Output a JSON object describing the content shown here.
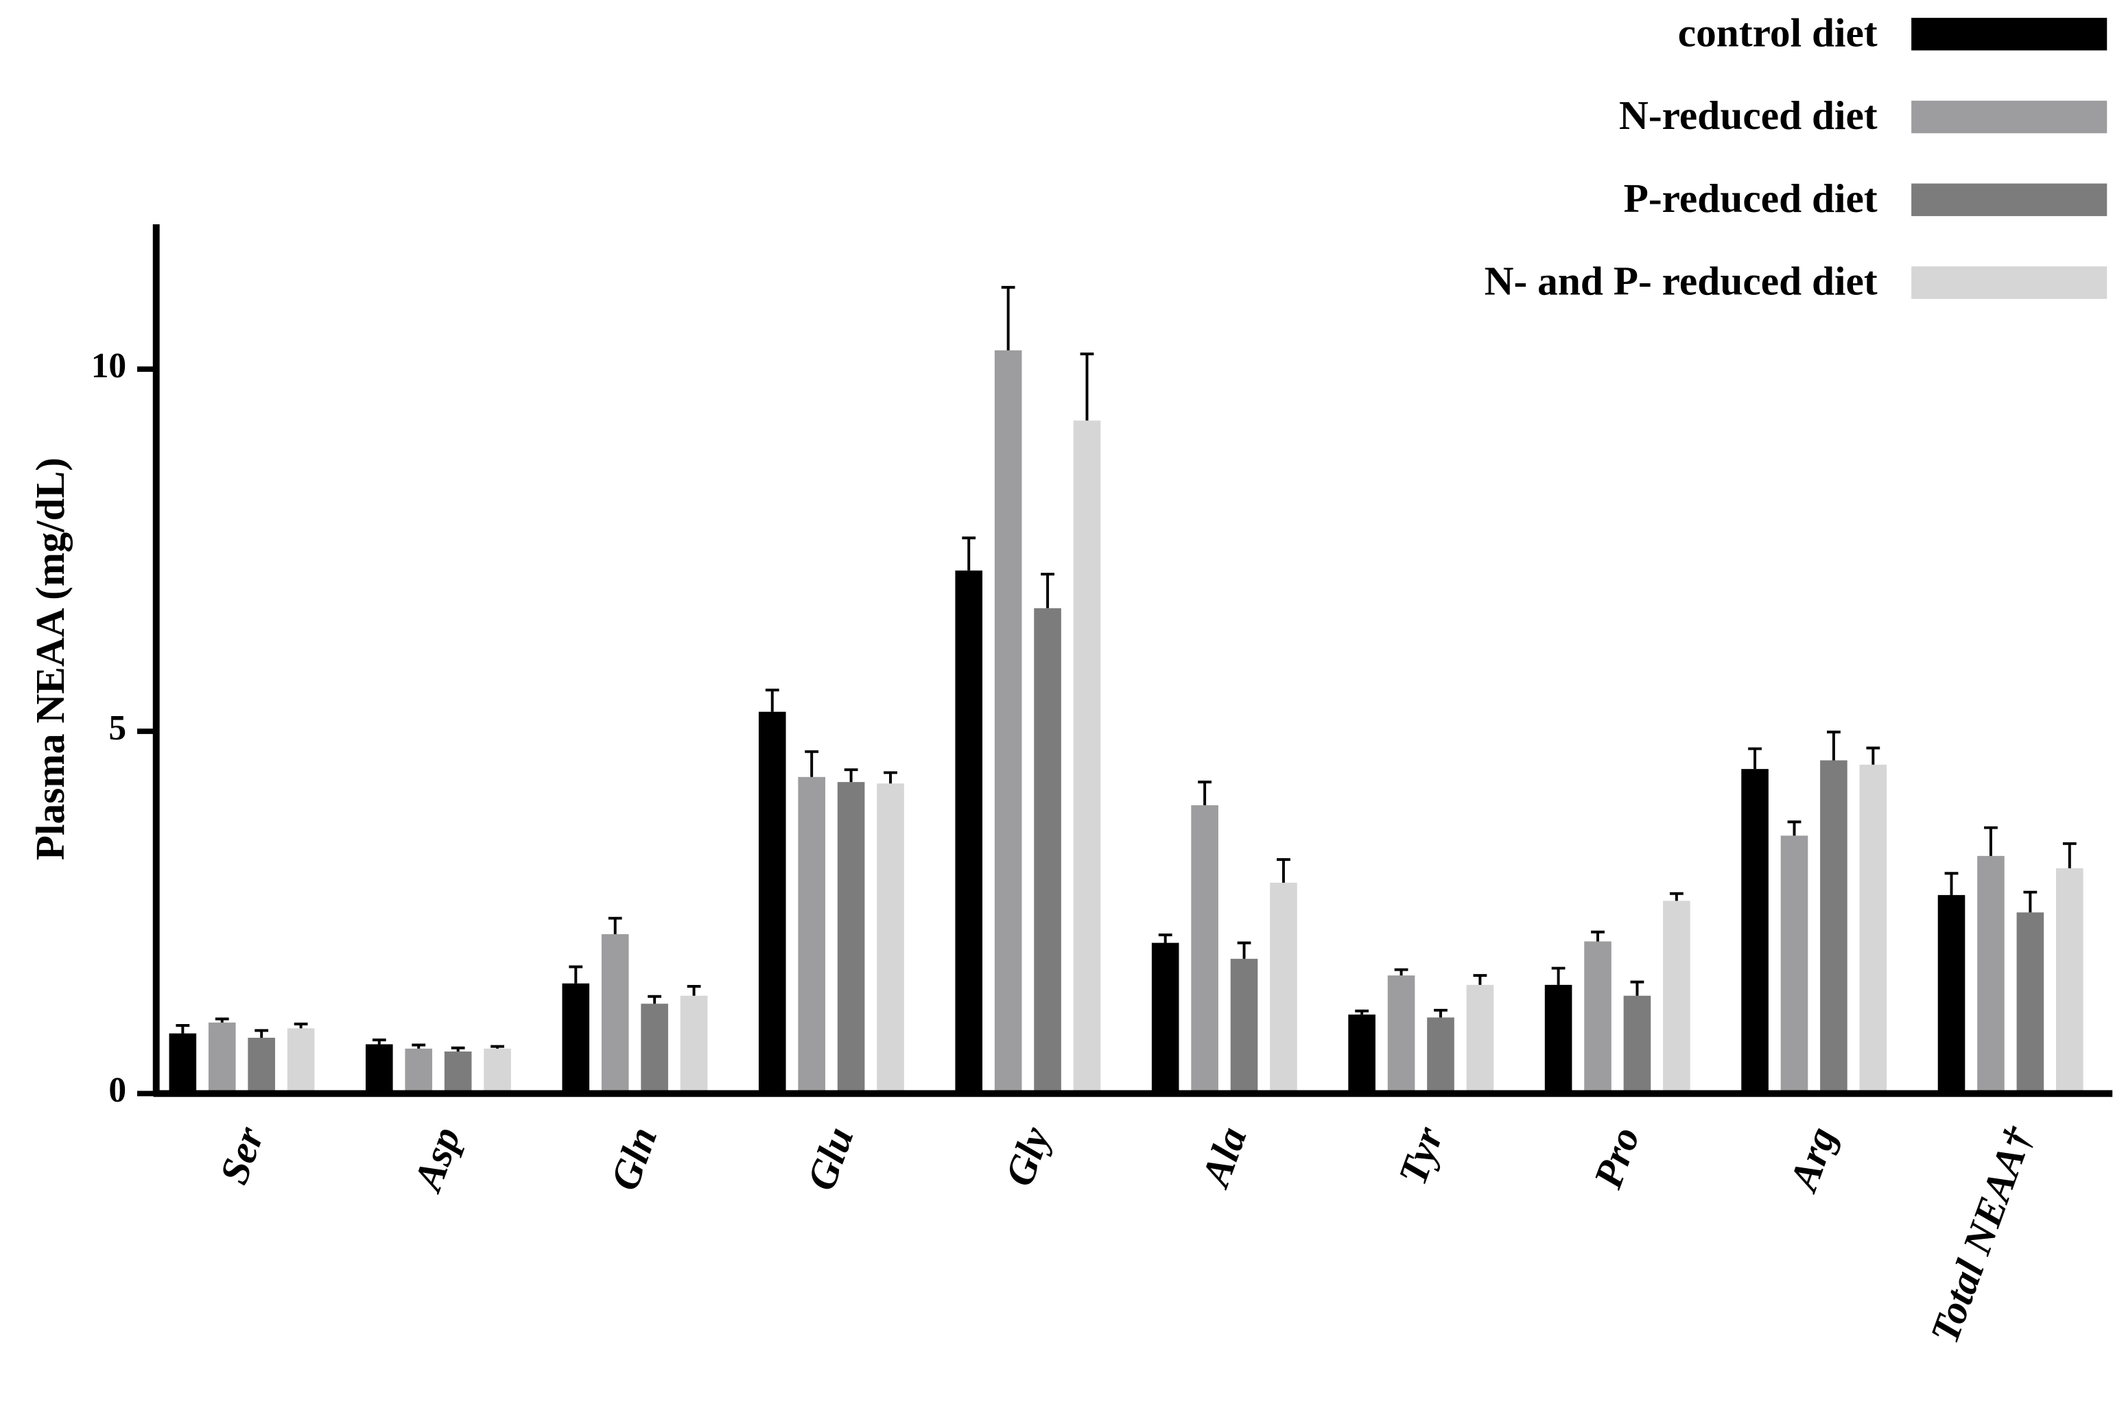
{
  "chart_data": {
    "type": "bar",
    "y_label": "Plasma NEAA (mg/dL)",
    "categories": [
      "Ser",
      "Asp",
      "Gln",
      "Glu",
      "Gly",
      "Ala",
      "Tyr",
      "Pro",
      "Arg",
      "Total NEAA†"
    ],
    "series": [
      {
        "name": "control diet",
        "color": "#000000",
        "values": [
          0.83,
          0.68,
          1.52,
          5.27,
          7.22,
          2.08,
          1.09,
          1.5,
          4.48,
          2.74
        ],
        "errors": [
          0.11,
          0.06,
          0.23,
          0.3,
          0.45,
          0.11,
          0.05,
          0.23,
          0.28,
          0.3
        ]
      },
      {
        "name": "N-reduced diet",
        "color": "#9d9d9f",
        "values": [
          0.98,
          0.62,
          2.2,
          4.37,
          10.26,
          3.98,
          1.63,
          2.1,
          3.56,
          3.28
        ],
        "errors": [
          0.05,
          0.05,
          0.22,
          0.35,
          0.87,
          0.32,
          0.08,
          0.13,
          0.19,
          0.39
        ]
      },
      {
        "name": "P-reduced diet",
        "color": "#7c7c7c",
        "values": [
          0.77,
          0.58,
          1.24,
          4.3,
          6.7,
          1.86,
          1.05,
          1.35,
          4.6,
          2.5
        ],
        "errors": [
          0.1,
          0.05,
          0.1,
          0.17,
          0.47,
          0.22,
          0.1,
          0.19,
          0.39,
          0.28
        ]
      },
      {
        "name": "N- and P- reduced diet",
        "color": "#d6d6d6",
        "values": [
          0.9,
          0.62,
          1.35,
          4.28,
          9.29,
          2.91,
          1.5,
          2.66,
          4.54,
          3.11
        ],
        "errors": [
          0.06,
          0.03,
          0.13,
          0.15,
          0.92,
          0.32,
          0.13,
          0.1,
          0.23,
          0.34
        ]
      }
    ],
    "ylim": [
      0,
      12
    ],
    "yticks": [
      0,
      5,
      10
    ],
    "legend": "top-right"
  }
}
